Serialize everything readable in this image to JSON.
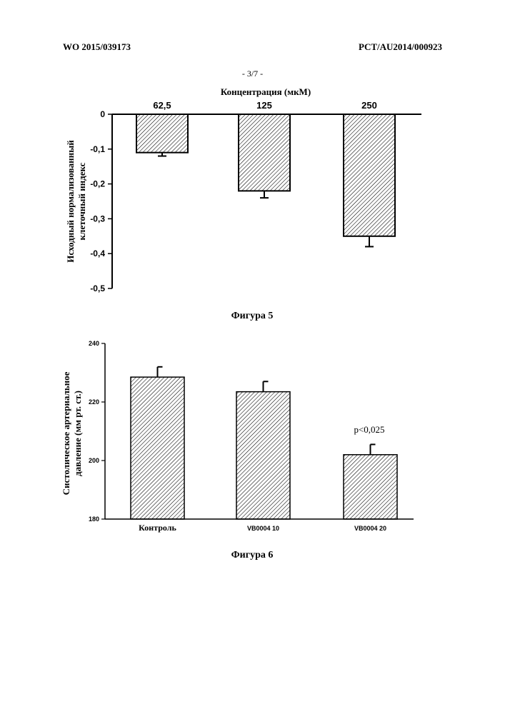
{
  "header": {
    "left": "WO 2015/039173",
    "right": "PCT/AU2014/000923",
    "page": "- 3/7 -"
  },
  "chart_data": [
    {
      "type": "bar",
      "caption": "Фигура 5",
      "title": "Концентрация (мкМ)",
      "ylabel": [
        "Исходный нормализованный",
        "клеточный индекс"
      ],
      "categories": [
        "62,5",
        "125",
        "250"
      ],
      "values": [
        -0.11,
        -0.22,
        -0.35
      ],
      "errors": [
        0.01,
        0.02,
        0.03
      ],
      "ylim": [
        -0.5,
        0
      ],
      "yticks": [
        0,
        -0.1,
        -0.2,
        -0.3,
        -0.4,
        -0.5
      ],
      "ytick_labels": [
        "0",
        "-0,1",
        "-0,2",
        "-0,3",
        "-0,4",
        "-0,5"
      ],
      "fill": "hatched",
      "grid": false
    },
    {
      "type": "bar",
      "caption": "Фигура 6",
      "ylabel": [
        "Систолическое артериальное",
        "давление (мм рт. ст.)"
      ],
      "categories": [
        "Контроль",
        "VB0004 10",
        "VB0004 20"
      ],
      "values": [
        228.5,
        223.5,
        202
      ],
      "errors": [
        3.5,
        3.5,
        3.5
      ],
      "ylim": [
        180,
        240
      ],
      "yticks": [
        180,
        200,
        220,
        240
      ],
      "ytick_labels": [
        "180",
        "200",
        "220",
        "240"
      ],
      "annotation": "p<0,025",
      "fill": "hatched",
      "grid": false
    }
  ]
}
